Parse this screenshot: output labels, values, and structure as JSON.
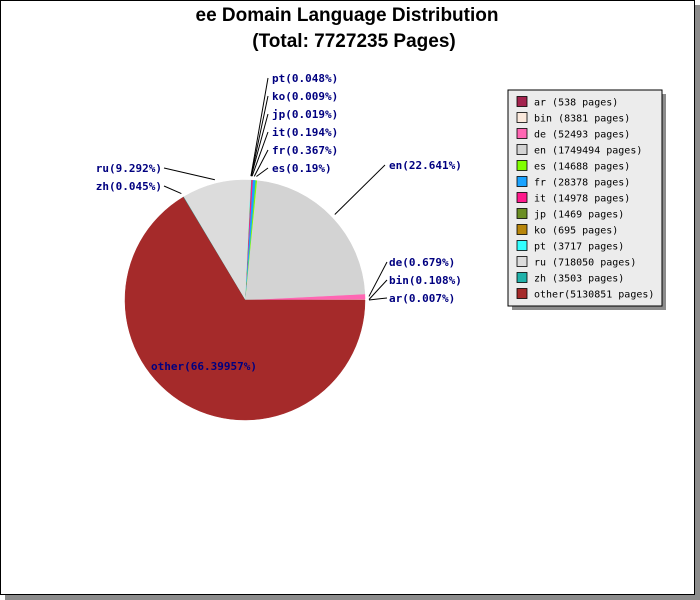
{
  "chart_data": {
    "type": "pie",
    "title": "ee Domain Language Distribution",
    "subtitle": "(Total: 7727235 Pages)",
    "legend_position": "right",
    "slices": [
      {
        "name": "ar",
        "pages": 538,
        "percent_label": "ar(0.007%)",
        "legend_label": "ar    (538 pages)",
        "color": "#a3234e"
      },
      {
        "name": "bin",
        "pages": 8381,
        "percent_label": "bin(0.108%)",
        "legend_label": "bin   (8381 pages)",
        "color": "#fbe9dc"
      },
      {
        "name": "de",
        "pages": 52493,
        "percent_label": "de(0.679%)",
        "legend_label": "de    (52493 pages)",
        "color": "#ff66b3"
      },
      {
        "name": "en",
        "pages": 1749494,
        "percent_label": "en(22.641%)",
        "legend_label": "en    (1749494 pages)",
        "color": "#d3d3d3"
      },
      {
        "name": "es",
        "pages": 14688,
        "percent_label": "es(0.19%)",
        "legend_label": "es    (14688 pages)",
        "color": "#80ff00"
      },
      {
        "name": "fr",
        "pages": 28378,
        "percent_label": "fr(0.367%)",
        "legend_label": "fr    (28378 pages)",
        "color": "#1aa3ff"
      },
      {
        "name": "it",
        "pages": 14978,
        "percent_label": "it(0.194%)",
        "legend_label": "it    (14978 pages)",
        "color": "#ff1a8c"
      },
      {
        "name": "jp",
        "pages": 1469,
        "percent_label": "jp(0.019%)",
        "legend_label": "jp    (1469 pages)",
        "color": "#6b8e23"
      },
      {
        "name": "ko",
        "pages": 695,
        "percent_label": "ko(0.009%)",
        "legend_label": "ko    (695 pages)",
        "color": "#b8860b"
      },
      {
        "name": "pt",
        "pages": 3717,
        "percent_label": "pt(0.048%)",
        "legend_label": "pt    (3717 pages)",
        "color": "#33ffff"
      },
      {
        "name": "ru",
        "pages": 718050,
        "percent_label": "ru(9.292%)",
        "legend_label": "ru    (718050 pages)",
        "color": "#dcdcdc"
      },
      {
        "name": "zh",
        "pages": 3503,
        "percent_label": "zh(0.045%)",
        "legend_label": "zh    (3503 pages)",
        "color": "#20b2aa"
      },
      {
        "name": "other",
        "pages": 5130851,
        "percent_label": "other(66.39957%)",
        "legend_label": "other(5130851 pages)",
        "color": "#a52a2a"
      }
    ]
  }
}
